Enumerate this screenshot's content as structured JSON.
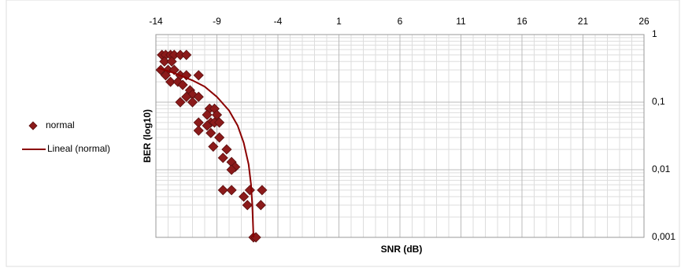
{
  "chart_data": {
    "type": "scatter",
    "x_label": "SNR (dB)",
    "y_label": "BER (log10)",
    "xlim": [
      -14,
      26
    ],
    "xticks": [
      -14,
      -9,
      -4,
      1,
      6,
      11,
      16,
      21,
      26
    ],
    "ylim": [
      0.001,
      1
    ],
    "yticks": [
      1,
      {
        "value": 0.1,
        "label": "0,1"
      },
      {
        "value": 0.01,
        "label": "0,01"
      },
      {
        "value": 0.001,
        "label": "0,001"
      }
    ],
    "y_scale": "log",
    "grid": true,
    "minor_grid": true,
    "legend": "left",
    "series": [
      {
        "name": "normal",
        "color": "#8b1a1a",
        "mode": "markers",
        "x": [
          -13.5,
          -13.2,
          -12.8,
          -12.5,
          -12,
          -11.5,
          -13.3,
          -12.7,
          -13.6,
          -13,
          -12.5,
          -12,
          -11.5,
          -13.2,
          -12.8,
          -12.2,
          -11.8,
          -11.2,
          -11,
          -10.5,
          -11.5,
          -12,
          -11,
          -10.5,
          -9.6,
          -9.2,
          -9.8,
          -9,
          -9.5,
          -10.5,
          -9.8,
          -9.2,
          -8.8,
          -10.5,
          -9.5,
          -8.8,
          -9.3,
          -8.2,
          -8.5,
          -7.8,
          -7.5,
          -7.8,
          -8.5,
          -7.8,
          -6.3,
          -5.3,
          -6.8,
          -6.5,
          -5.4,
          -6,
          -5.8
        ],
        "values": [
          0.5,
          0.5,
          0.5,
          0.5,
          0.5,
          0.5,
          0.4,
          0.4,
          0.3,
          0.3,
          0.3,
          0.25,
          0.25,
          0.25,
          0.2,
          0.2,
          0.18,
          0.15,
          0.13,
          0.25,
          0.12,
          0.1,
          0.1,
          0.12,
          0.08,
          0.08,
          0.065,
          0.065,
          0.05,
          0.05,
          0.045,
          0.05,
          0.05,
          0.038,
          0.035,
          0.03,
          0.022,
          0.02,
          0.015,
          0.013,
          0.011,
          0.01,
          0.005,
          0.005,
          0.005,
          0.005,
          0.004,
          0.003,
          0.003,
          0.001,
          0.001
        ]
      },
      {
        "name": "Lineal (normal)",
        "color": "#8b0000",
        "mode": "line",
        "x": [
          -13.8,
          -12.5,
          -11,
          -10,
          -9,
          -8,
          -7.3,
          -6.8,
          -6.4,
          -6.2,
          -6.1,
          -6
        ],
        "values": [
          0.32,
          0.27,
          0.21,
          0.17,
          0.12,
          0.075,
          0.045,
          0.025,
          0.012,
          0.006,
          0.003,
          0.001
        ]
      }
    ]
  }
}
